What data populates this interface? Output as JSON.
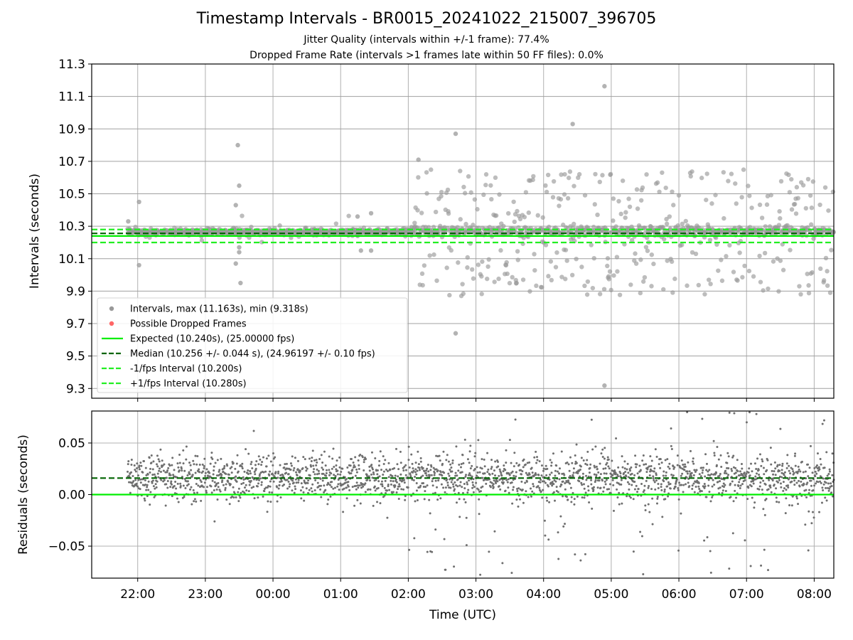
{
  "chart_data": {
    "type": "scatter",
    "title": "Timestamp Intervals - BR0015_20241022_215007_396705",
    "subtitles": [
      "Jitter Quality (intervals within +/-1 frame): 77.4%",
      "Dropped Frame Rate (intervals >1 frames late within 50 FF files): 0.0%"
    ],
    "xlabel": "Time (UTC)",
    "x_ticks": [
      "22:00",
      "23:00",
      "00:00",
      "01:00",
      "02:00",
      "03:00",
      "04:00",
      "05:00",
      "06:00",
      "07:00",
      "08:00"
    ],
    "x_range_hours": [
      21.32,
      32.29
    ],
    "x_data_start_hours": 21.85,
    "x_data_end_hours": 32.29,
    "colors": {
      "points": "#7f7f7f",
      "dropped": "#ff0000",
      "expected": "#00ee00",
      "median": "#006400",
      "bounds": "#22ee22",
      "grid": "#b0b0b0"
    },
    "panels": [
      {
        "name": "intervals",
        "ylabel": "Intervals (seconds)",
        "ylim": [
          9.24,
          11.3
        ],
        "y_ticks": [
          "11.3",
          "11.1",
          "10.9",
          "10.7",
          "10.5",
          "10.3",
          "10.1",
          "9.9",
          "9.7",
          "9.5",
          "9.3"
        ],
        "y_tick_values": [
          11.3,
          11.1,
          10.9,
          10.7,
          10.5,
          10.3,
          10.1,
          9.9,
          9.7,
          9.5,
          9.3
        ],
        "lines": [
          {
            "label": "Expected (10.240s), (25.00000 fps)",
            "y": 10.24,
            "style": "solid",
            "color": "#00ee00"
          },
          {
            "label": "Median (10.256 +/- 0.044 s), (24.96197 +/- 0.10 fps)",
            "y": 10.256,
            "style": "dashed",
            "color": "#006400"
          },
          {
            "label": "-1/fps Interval (10.200s)",
            "y": 10.2,
            "style": "dashed",
            "color": "#22ee22"
          },
          {
            "label": "+1/fps Interval (10.280s)",
            "y": 10.28,
            "style": "dashed",
            "color": "#22ee22"
          }
        ],
        "legend": {
          "position": "lower-left",
          "entries": [
            {
              "label": "Intervals, max (11.163s), min (9.318s)",
              "marker": "dot",
              "color": "#999999"
            },
            {
              "label": "Possible Dropped Frames",
              "marker": "dot",
              "color": "#ff6666"
            },
            {
              "label": "Expected (10.240s), (25.00000 fps)",
              "marker": "solid",
              "color": "#00ee00"
            },
            {
              "label": "Median (10.256 +/- 0.044 s), (24.96197 +/- 0.10 fps)",
              "marker": "dashed",
              "color": "#006400"
            },
            {
              "label": "-1/fps Interval (10.200s)",
              "marker": "dashed",
              "color": "#22ee22"
            },
            {
              "label": "+1/fps Interval (10.280s)",
              "marker": "dashed",
              "color": "#22ee22"
            }
          ]
        },
        "stats": {
          "max": 11.163,
          "min": 9.318,
          "median": 10.256,
          "std": 0.044,
          "expected": 10.24
        },
        "outliers": [
          {
            "x": 21.86,
            "y": 10.33
          },
          {
            "x": 22.02,
            "y": 10.45
          },
          {
            "x": 22.02,
            "y": 10.06
          },
          {
            "x": 23.48,
            "y": 10.8
          },
          {
            "x": 23.5,
            "y": 10.55
          },
          {
            "x": 23.45,
            "y": 10.43
          },
          {
            "x": 23.45,
            "y": 10.07
          },
          {
            "x": 23.5,
            "y": 10.17
          },
          {
            "x": 23.5,
            "y": 10.14
          },
          {
            "x": 23.52,
            "y": 9.95
          },
          {
            "x": 25.25,
            "y": 10.36
          },
          {
            "x": 25.3,
            "y": 10.15
          },
          {
            "x": 25.45,
            "y": 10.15
          },
          {
            "x": 25.45,
            "y": 10.38
          },
          {
            "x": 26.7,
            "y": 10.87
          },
          {
            "x": 26.7,
            "y": 9.64
          },
          {
            "x": 28.43,
            "y": 10.93
          },
          {
            "x": 28.9,
            "y": 11.163
          },
          {
            "x": 28.9,
            "y": 9.318
          },
          {
            "x": 27.6,
            "y": 9.95
          },
          {
            "x": 26.15,
            "y": 10.71
          }
        ]
      },
      {
        "name": "residuals",
        "ylabel": "Residuals (seconds)",
        "ylim": [
          -0.081,
          0.081
        ],
        "y_ticks": [
          "0.05",
          "0.00",
          "−0.05"
        ],
        "y_tick_values": [
          0.05,
          0.0,
          -0.05
        ],
        "lines": [
          {
            "y": 0.016,
            "style": "dashed",
            "color": "#006400"
          },
          {
            "y": 0.0,
            "style": "solid",
            "color": "#00ee00"
          }
        ],
        "stats": {
          "median": 0.016
        }
      }
    ]
  }
}
